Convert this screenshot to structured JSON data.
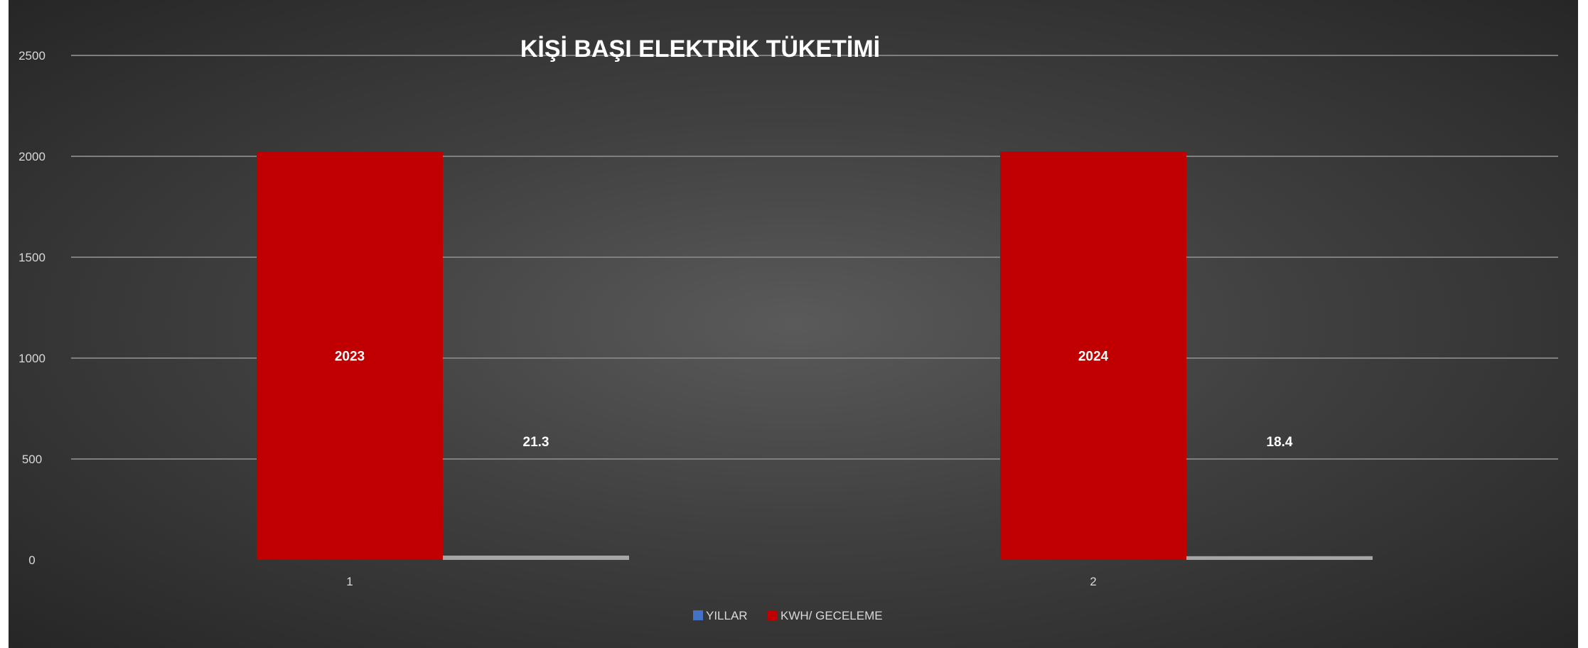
{
  "chart_data": {
    "type": "bar",
    "title": "KİŞİ BAŞI ELEKTRİK TÜKETİMİ",
    "xlabel": "",
    "ylabel": "",
    "categories": [
      "1",
      "2"
    ],
    "ylim": [
      0,
      2500
    ],
    "yticks": [
      "0",
      "500",
      "1000",
      "1500",
      "2000",
      "2500"
    ],
    "grid": true,
    "legend_position": "bottom",
    "series": [
      {
        "name": "YILLAR",
        "values": [
          2023,
          2024
        ],
        "labels": [
          "2023",
          "2024"
        ],
        "color": "#c00000"
      },
      {
        "name": "KWH/ GECELEME",
        "values": [
          21.3,
          18.4
        ],
        "labels": [
          "21.3",
          "18.4"
        ],
        "color": "#a6a6a6"
      }
    ],
    "legend": [
      {
        "name": "YILLAR",
        "color": "#4472c4"
      },
      {
        "name": "KWH/ GECELEME",
        "color": "#c00000"
      }
    ]
  }
}
